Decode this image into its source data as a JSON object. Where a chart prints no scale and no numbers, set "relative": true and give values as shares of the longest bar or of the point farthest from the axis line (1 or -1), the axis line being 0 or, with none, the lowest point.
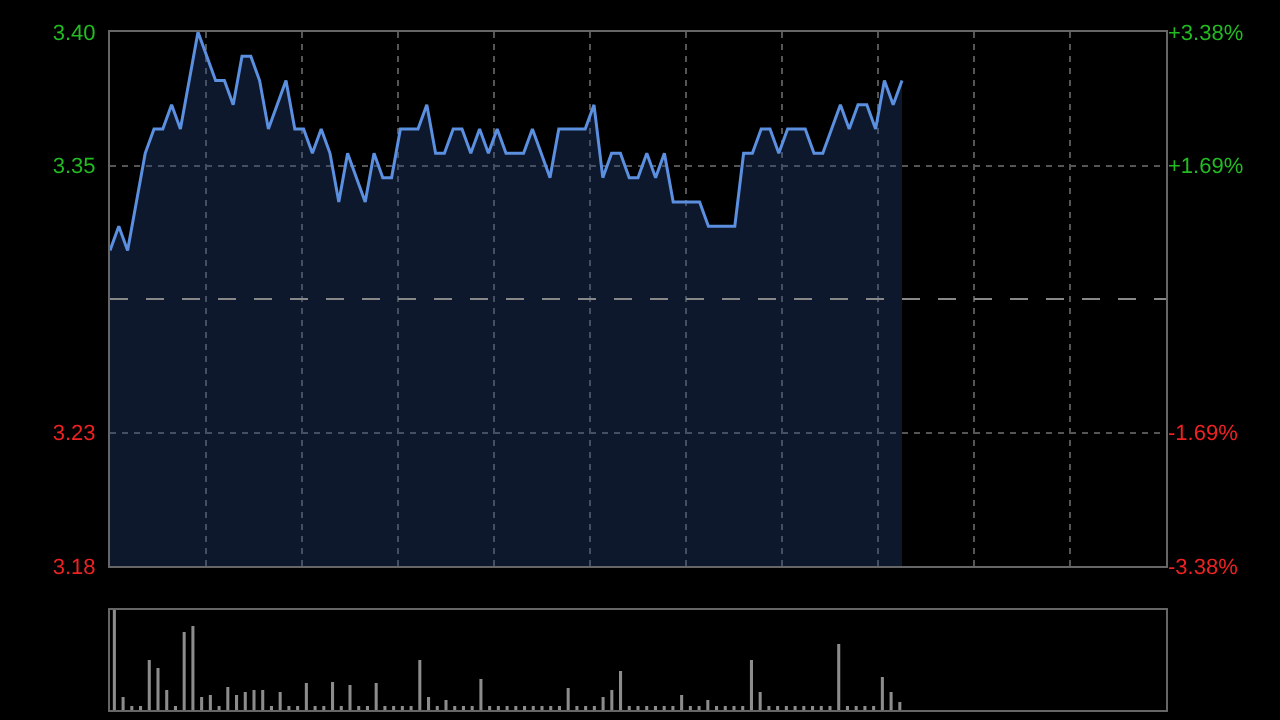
{
  "chart_data": [
    {
      "type": "area",
      "categories": [
        null,
        null,
        null,
        null,
        null,
        null,
        null,
        null,
        null,
        null,
        null,
        null,
        null,
        null,
        null,
        null,
        null,
        null,
        null,
        null,
        null,
        null,
        null,
        null,
        null,
        null,
        null,
        null,
        null,
        null,
        null,
        null,
        null,
        null,
        null,
        null,
        null,
        null,
        null,
        null,
        null,
        null,
        null,
        null,
        null,
        null,
        null,
        null,
        null,
        null,
        null,
        null,
        null,
        null,
        null,
        null,
        null,
        null,
        null,
        null,
        null,
        null,
        null,
        null,
        null,
        null,
        null,
        null,
        null,
        null,
        null,
        null,
        null,
        null,
        null,
        null,
        null,
        null,
        null,
        null,
        null,
        null,
        null,
        null,
        null,
        null,
        null,
        null,
        null,
        null,
        null,
        null,
        null,
        null,
        null,
        null,
        null,
        null,
        null,
        null,
        null,
        null,
        null,
        null,
        null,
        null,
        null,
        null,
        null,
        null,
        null,
        null,
        null,
        null,
        null,
        null,
        null,
        null,
        null,
        null,
        null
      ],
      "series": [
        {
          "color": "#5b8fe0",
          "values": [
            3.31,
            3.32,
            3.31,
            3.33,
            3.35,
            3.36,
            3.36,
            3.37,
            3.36,
            3.38,
            3.4,
            3.39,
            3.38,
            3.38,
            3.37,
            3.39,
            3.39,
            3.38,
            3.36,
            3.37,
            3.38,
            3.36,
            3.36,
            3.35,
            3.36,
            3.35,
            3.33,
            3.35,
            3.34,
            3.33,
            3.35,
            3.34,
            3.34,
            3.36,
            3.36,
            3.36,
            3.37,
            3.35,
            3.35,
            3.36,
            3.36,
            3.35,
            3.36,
            3.35,
            3.36,
            3.35,
            3.35,
            3.35,
            3.36,
            3.35,
            3.34,
            3.36,
            3.36,
            3.36,
            3.36,
            3.37,
            3.34,
            3.35,
            3.35,
            3.34,
            3.34,
            3.35,
            3.34,
            3.35,
            3.33,
            3.33,
            3.33,
            3.33,
            3.32,
            3.32,
            3.32,
            3.32,
            3.35,
            3.35,
            3.36,
            3.36,
            3.35,
            3.36,
            3.36,
            3.36,
            3.35,
            3.35,
            3.36,
            3.37,
            3.36,
            3.37,
            3.37,
            3.36,
            3.38,
            3.37,
            3.38,
            null,
            null,
            null,
            null,
            null,
            null,
            null,
            null,
            null,
            null,
            null,
            null,
            null,
            null,
            null,
            null,
            null,
            null,
            null,
            null,
            null,
            null,
            null,
            null,
            null,
            null,
            null,
            null,
            null,
            null
          ]
        }
      ],
      "ylim": [
        3.18,
        3.4
      ],
      "yticks": [
        {
          "value": 3.4,
          "label": "3.40"
        },
        {
          "value": 3.345,
          "label": "3.35"
        },
        {
          "value": 3.235,
          "label": "3.23"
        },
        {
          "value": 3.18,
          "label": "3.18"
        }
      ],
      "y2lim": [
        -3.38,
        3.38
      ],
      "y2ticks": [
        {
          "value": 3.38,
          "label": "+3.38%"
        },
        {
          "value": 1.69,
          "label": "+1.69%"
        },
        {
          "value": -1.69,
          "label": "-1.69%"
        },
        {
          "value": -3.38,
          "label": "-3.38%"
        }
      ],
      "ref_lines": [
        {
          "axis": "y",
          "value": 3.29,
          "color": "#888888",
          "line_style": "dashed"
        }
      ],
      "grid": true,
      "tick_labels": "y"
    },
    {
      "type": "bar",
      "relative": true,
      "tick_labels": false,
      "color": "#8c8c8c",
      "categories": [
        null,
        null,
        null,
        null,
        null,
        null,
        null,
        null,
        null,
        null,
        null,
        null,
        null,
        null,
        null,
        null,
        null,
        null,
        null,
        null,
        null,
        null,
        null,
        null,
        null,
        null,
        null,
        null,
        null,
        null,
        null,
        null,
        null,
        null,
        null,
        null,
        null,
        null,
        null,
        null,
        null,
        null,
        null,
        null,
        null,
        null,
        null,
        null,
        null,
        null,
        null,
        null,
        null,
        null,
        null,
        null,
        null,
        null,
        null,
        null,
        null,
        null,
        null,
        null,
        null,
        null,
        null,
        null,
        null,
        null,
        null,
        null,
        null,
        null,
        null,
        null,
        null,
        null,
        null,
        null,
        null,
        null,
        null,
        null,
        null,
        null,
        null,
        null,
        null,
        null,
        null,
        null,
        null,
        null,
        null,
        null,
        null,
        null,
        null,
        null,
        null,
        null,
        null,
        null,
        null,
        null,
        null,
        null,
        null,
        null,
        null,
        null,
        null,
        null,
        null,
        null,
        null,
        null,
        null,
        null,
        null
      ],
      "values": [
        1.0,
        0.13,
        0.04,
        0.04,
        0.5,
        0.42,
        0.2,
        0.04,
        0.78,
        0.84,
        0.13,
        0.15,
        0.04,
        0.23,
        0.15,
        0.18,
        0.2,
        0.2,
        0.04,
        0.18,
        0.04,
        0.04,
        0.27,
        0.04,
        0.04,
        0.28,
        0.04,
        0.25,
        0.04,
        0.04,
        0.27,
        0.04,
        0.04,
        0.04,
        0.04,
        0.5,
        0.13,
        0.04,
        0.1,
        0.04,
        0.04,
        0.04,
        0.31,
        0.04,
        0.04,
        0.04,
        0.04,
        0.04,
        0.04,
        0.04,
        0.04,
        0.04,
        0.22,
        0.04,
        0.04,
        0.04,
        0.13,
        0.2,
        0.39,
        0.04,
        0.04,
        0.04,
        0.04,
        0.04,
        0.04,
        0.15,
        0.04,
        0.04,
        0.1,
        0.04,
        0.04,
        0.04,
        0.04,
        0.5,
        0.18,
        0.04,
        0.04,
        0.04,
        0.04,
        0.04,
        0.04,
        0.04,
        0.04,
        0.66,
        0.04,
        0.04,
        0.04,
        0.04,
        0.33,
        0.18,
        0.08,
        null,
        null,
        null,
        null,
        null,
        null,
        null,
        null,
        null,
        null,
        null,
        null,
        null,
        null,
        null,
        null,
        null,
        null,
        null,
        null,
        null,
        null,
        null,
        null,
        null,
        null,
        null,
        null,
        null,
        null
      ]
    }
  ]
}
